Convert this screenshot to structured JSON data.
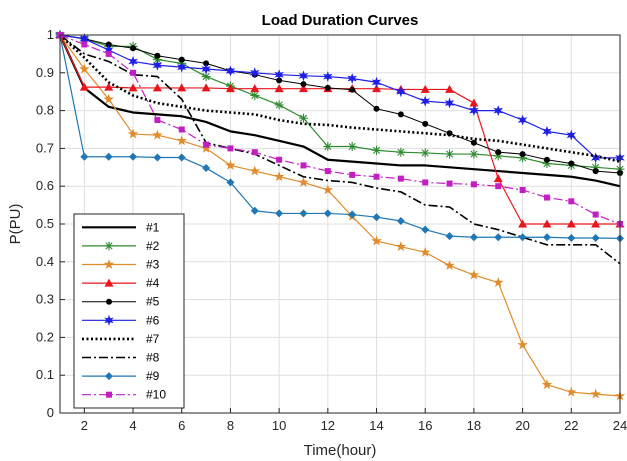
{
  "chart_data": {
    "type": "line",
    "title": "Load Duration Curves",
    "xlabel": "Time(hour)",
    "ylabel": "P(PU)",
    "xlim": [
      1,
      24
    ],
    "ylim": [
      0,
      1
    ],
    "xticks": [
      2,
      4,
      6,
      8,
      10,
      12,
      14,
      16,
      18,
      20,
      22,
      24
    ],
    "yticks": [
      0,
      0.1,
      0.2,
      0.3,
      0.4,
      0.5,
      0.6,
      0.7,
      0.8,
      0.9,
      1
    ],
    "grid": true,
    "legend_position": "bottom-left",
    "x": [
      1,
      2,
      3,
      4,
      5,
      6,
      7,
      8,
      9,
      10,
      11,
      12,
      13,
      14,
      15,
      16,
      17,
      18,
      19,
      20,
      21,
      22,
      23,
      24
    ],
    "series": [
      {
        "name": "#1",
        "color": "#000000",
        "style": "solid",
        "width": 2.2,
        "marker": "none",
        "values": [
          1.0,
          0.86,
          0.81,
          0.795,
          0.79,
          0.785,
          0.77,
          0.745,
          0.735,
          0.72,
          0.705,
          0.67,
          0.665,
          0.66,
          0.655,
          0.655,
          0.65,
          0.645,
          0.64,
          0.635,
          0.63,
          0.625,
          0.615,
          0.6
        ]
      },
      {
        "name": "#2",
        "color": "#2e8b2e",
        "style": "solid",
        "width": 1.2,
        "marker": "asterisk",
        "values": [
          1.0,
          0.99,
          0.97,
          0.97,
          0.935,
          0.925,
          0.89,
          0.865,
          0.84,
          0.815,
          0.78,
          0.705,
          0.705,
          0.695,
          0.69,
          0.688,
          0.685,
          0.685,
          0.68,
          0.675,
          0.66,
          0.655,
          0.65,
          0.645
        ]
      },
      {
        "name": "#3",
        "color": "#e08c2c",
        "style": "solid",
        "width": 1.2,
        "marker": "star",
        "values": [
          1.0,
          0.91,
          0.83,
          0.738,
          0.735,
          0.72,
          0.7,
          0.655,
          0.64,
          0.625,
          0.61,
          0.59,
          0.52,
          0.455,
          0.44,
          0.425,
          0.39,
          0.365,
          0.345,
          0.18,
          0.075,
          0.055,
          0.05,
          0.045
        ]
      },
      {
        "name": "#4",
        "color": "#e8161c",
        "style": "solid",
        "width": 1.2,
        "marker": "triangle",
        "values": [
          1.0,
          0.862,
          0.862,
          0.86,
          0.86,
          0.86,
          0.86,
          0.858,
          0.858,
          0.858,
          0.858,
          0.858,
          0.858,
          0.858,
          0.856,
          0.856,
          0.856,
          0.82,
          0.62,
          0.5,
          0.5,
          0.5,
          0.5,
          0.5
        ]
      },
      {
        "name": "#5",
        "color": "#000000",
        "style": "solid",
        "width": 1.0,
        "marker": "dot",
        "values": [
          1.0,
          0.99,
          0.975,
          0.965,
          0.945,
          0.935,
          0.925,
          0.905,
          0.895,
          0.88,
          0.87,
          0.86,
          0.855,
          0.805,
          0.79,
          0.765,
          0.74,
          0.715,
          0.69,
          0.685,
          0.67,
          0.66,
          0.64,
          0.635
        ]
      },
      {
        "name": "#6",
        "color": "#1f1fe8",
        "style": "solid",
        "width": 1.2,
        "marker": "star6",
        "values": [
          1.0,
          0.99,
          0.96,
          0.93,
          0.92,
          0.915,
          0.91,
          0.905,
          0.9,
          0.895,
          0.892,
          0.89,
          0.885,
          0.875,
          0.85,
          0.825,
          0.82,
          0.8,
          0.8,
          0.775,
          0.745,
          0.735,
          0.675,
          0.675
        ]
      },
      {
        "name": "#7",
        "color": "#000000",
        "style": "dotted",
        "width": 2.6,
        "marker": "none",
        "values": [
          1.0,
          0.94,
          0.875,
          0.84,
          0.82,
          0.81,
          0.8,
          0.795,
          0.79,
          0.775,
          0.765,
          0.762,
          0.755,
          0.75,
          0.745,
          0.74,
          0.735,
          0.725,
          0.72,
          0.71,
          0.7,
          0.69,
          0.68,
          0.665
        ]
      },
      {
        "name": "#8",
        "color": "#000000",
        "style": "dashdot",
        "width": 1.6,
        "marker": "none",
        "values": [
          1.0,
          0.95,
          0.93,
          0.895,
          0.89,
          0.83,
          0.715,
          0.7,
          0.685,
          0.655,
          0.625,
          0.615,
          0.61,
          0.595,
          0.585,
          0.55,
          0.545,
          0.5,
          0.485,
          0.465,
          0.445,
          0.445,
          0.445,
          0.395
        ]
      },
      {
        "name": "#9",
        "color": "#1f77b4",
        "style": "solid",
        "width": 1.2,
        "marker": "diamond",
        "values": [
          1.0,
          0.678,
          0.678,
          0.678,
          0.676,
          0.676,
          0.648,
          0.61,
          0.535,
          0.528,
          0.528,
          0.528,
          0.525,
          0.518,
          0.508,
          0.485,
          0.468,
          0.465,
          0.465,
          0.465,
          0.465,
          0.463,
          0.463,
          0.462
        ]
      },
      {
        "name": "#10",
        "color": "#c21fc2",
        "style": "dashdot",
        "width": 1.2,
        "marker": "square",
        "values": [
          1.0,
          0.975,
          0.95,
          0.9,
          0.775,
          0.75,
          0.71,
          0.7,
          0.69,
          0.67,
          0.655,
          0.64,
          0.63,
          0.625,
          0.62,
          0.61,
          0.607,
          0.605,
          0.6,
          0.59,
          0.57,
          0.56,
          0.525,
          0.5
        ]
      }
    ]
  }
}
